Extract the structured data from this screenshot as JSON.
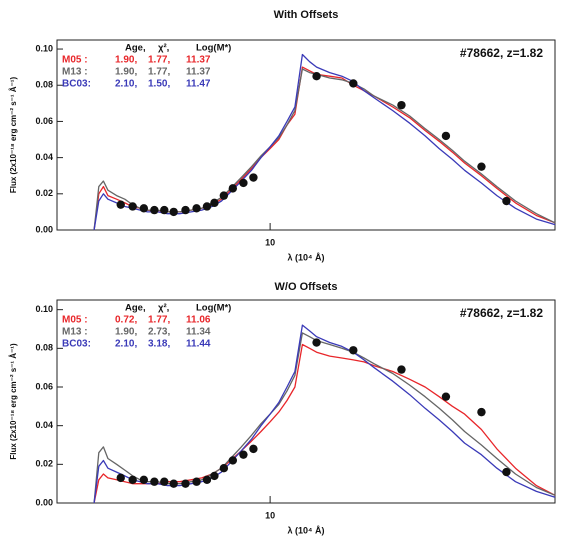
{
  "chart_data": [
    {
      "type": "line",
      "title": "With Offsets",
      "xlabel": "λ (10⁴ Å)",
      "ylabel": "Flux (2x10⁻¹⁸ erg cm⁻² s⁻¹ Å⁻¹)",
      "annotation": "#78662, z=1.82",
      "legend_header": [
        "Age,",
        "χ²,",
        "Log(M*)"
      ],
      "xscale": "log",
      "xlim": [
        3,
        50
      ],
      "xticks": [
        10
      ],
      "ylim": [
        0,
        0.105
      ],
      "yticks": [
        {
          "value": 0,
          "label": "0.00"
        },
        {
          "value": 0.02,
          "label": "0.02"
        },
        {
          "value": 0.04,
          "label": "0.04"
        },
        {
          "value": 0.06,
          "label": "0.06"
        },
        {
          "value": 0.08,
          "label": "0.08"
        },
        {
          "value": 0.1,
          "label": "0.10"
        }
      ],
      "x": [
        3.7,
        3.8,
        3.9,
        4.0,
        4.2,
        4.4,
        4.6,
        4.8,
        5.0,
        5.3,
        5.6,
        6.0,
        6.4,
        6.8,
        7.2,
        7.6,
        8.0,
        8.5,
        9.0,
        9.5,
        10,
        10.5,
        11,
        11.5,
        12,
        12.5,
        13,
        14,
        15,
        16,
        17,
        18,
        20,
        22,
        24,
        26,
        28,
        30,
        33,
        36,
        40,
        45,
        50
      ],
      "series": [
        {
          "name": "M05 :",
          "color": "#e8262a",
          "fit": [
            {
              "value": 1.9,
              "label": "1.90,"
            },
            {
              "value": 1.77,
              "label": "1.77,"
            },
            {
              "value": 11.37,
              "label": "11.37"
            }
          ],
          "values": [
            0.0,
            0.02,
            0.024,
            0.019,
            0.017,
            0.015,
            0.013,
            0.012,
            0.011,
            0.01,
            0.01,
            0.01,
            0.011,
            0.012,
            0.014,
            0.017,
            0.022,
            0.028,
            0.034,
            0.04,
            0.045,
            0.05,
            0.058,
            0.064,
            0.09,
            0.088,
            0.086,
            0.085,
            0.084,
            0.08,
            0.077,
            0.074,
            0.068,
            0.062,
            0.055,
            0.049,
            0.043,
            0.037,
            0.03,
            0.023,
            0.015,
            0.008,
            0.004
          ]
        },
        {
          "name": "M13 :",
          "color": "#666666",
          "fit": [
            {
              "value": 1.9,
              "label": "1.90,"
            },
            {
              "value": 1.77,
              "label": "1.77,"
            },
            {
              "value": 11.37,
              "label": "11.37"
            }
          ],
          "values": [
            0.0,
            0.024,
            0.027,
            0.022,
            0.019,
            0.017,
            0.014,
            0.012,
            0.011,
            0.011,
            0.01,
            0.01,
            0.011,
            0.012,
            0.015,
            0.018,
            0.023,
            0.029,
            0.035,
            0.041,
            0.046,
            0.051,
            0.058,
            0.066,
            0.089,
            0.087,
            0.086,
            0.084,
            0.083,
            0.081,
            0.078,
            0.074,
            0.069,
            0.063,
            0.056,
            0.05,
            0.044,
            0.038,
            0.031,
            0.024,
            0.016,
            0.009,
            0.004
          ]
        },
        {
          "name": "BC03:",
          "color": "#3a3ab8",
          "fit": [
            {
              "value": 2.1,
              "label": "2.10,"
            },
            {
              "value": 1.5,
              "label": "1.50,"
            },
            {
              "value": 11.47,
              "label": "11.47"
            }
          ],
          "values": [
            0.0,
            0.016,
            0.02,
            0.017,
            0.015,
            0.013,
            0.012,
            0.011,
            0.01,
            0.01,
            0.009,
            0.009,
            0.01,
            0.011,
            0.013,
            0.016,
            0.021,
            0.027,
            0.033,
            0.04,
            0.046,
            0.052,
            0.06,
            0.068,
            0.097,
            0.093,
            0.09,
            0.087,
            0.085,
            0.082,
            0.077,
            0.073,
            0.066,
            0.059,
            0.052,
            0.045,
            0.039,
            0.033,
            0.026,
            0.019,
            0.012,
            0.006,
            0.003
          ]
        }
      ],
      "points": {
        "color": "#111111",
        "x": [
          4.3,
          4.6,
          4.9,
          5.2,
          5.5,
          5.8,
          6.2,
          6.6,
          7.0,
          7.3,
          7.7,
          8.1,
          8.6,
          9.1,
          13,
          16,
          21,
          27,
          33,
          38
        ],
        "values": [
          0.014,
          0.013,
          0.012,
          0.011,
          0.011,
          0.01,
          0.011,
          0.012,
          0.013,
          0.015,
          0.019,
          0.023,
          0.026,
          0.029,
          0.085,
          0.081,
          0.069,
          0.052,
          0.035,
          0.016
        ]
      }
    },
    {
      "type": "line",
      "title": "W/O Offsets",
      "xlabel": "λ (10⁴ Å)",
      "ylabel": "Flux (2x10⁻¹⁸ erg cm⁻² s⁻¹ Å⁻¹)",
      "annotation": "#78662, z=1.82",
      "legend_header": [
        "Age,",
        "χ²,",
        "Log(M*)"
      ],
      "xscale": "log",
      "xlim": [
        3,
        50
      ],
      "xticks": [
        10
      ],
      "ylim": [
        0,
        0.105
      ],
      "yticks": [
        {
          "value": 0,
          "label": "0.00"
        },
        {
          "value": 0.02,
          "label": "0.02"
        },
        {
          "value": 0.04,
          "label": "0.04"
        },
        {
          "value": 0.06,
          "label": "0.06"
        },
        {
          "value": 0.08,
          "label": "0.08"
        },
        {
          "value": 0.1,
          "label": "0.10"
        }
      ],
      "x": [
        3.7,
        3.8,
        3.9,
        4.0,
        4.2,
        4.4,
        4.6,
        4.8,
        5.0,
        5.3,
        5.6,
        6.0,
        6.4,
        6.8,
        7.2,
        7.6,
        8.0,
        8.5,
        9.0,
        9.5,
        10,
        10.5,
        11,
        11.5,
        12,
        12.5,
        13,
        14,
        15,
        16,
        17,
        18,
        20,
        22,
        24,
        26,
        28,
        30,
        33,
        36,
        40,
        45,
        50
      ],
      "series": [
        {
          "name": "M05 :",
          "color": "#e8262a",
          "fit": [
            {
              "value": 0.72,
              "label": "0.72,"
            },
            {
              "value": 1.77,
              "label": "1.77,"
            },
            {
              "value": 11.06,
              "label": "11.06"
            }
          ],
          "values": [
            0.0,
            0.012,
            0.015,
            0.013,
            0.012,
            0.011,
            0.01,
            0.01,
            0.01,
            0.01,
            0.011,
            0.011,
            0.012,
            0.013,
            0.015,
            0.018,
            0.022,
            0.027,
            0.032,
            0.037,
            0.042,
            0.047,
            0.053,
            0.06,
            0.082,
            0.08,
            0.078,
            0.076,
            0.075,
            0.074,
            0.073,
            0.071,
            0.068,
            0.064,
            0.06,
            0.055,
            0.05,
            0.046,
            0.038,
            0.028,
            0.018,
            0.009,
            0.004
          ]
        },
        {
          "name": "M13 :",
          "color": "#666666",
          "fit": [
            {
              "value": 1.9,
              "label": "1.90,"
            },
            {
              "value": 2.73,
              "label": "2.73,"
            },
            {
              "value": 11.34,
              "label": "11.34"
            }
          ],
          "values": [
            0.0,
            0.026,
            0.029,
            0.023,
            0.02,
            0.017,
            0.014,
            0.012,
            0.011,
            0.011,
            0.01,
            0.01,
            0.011,
            0.012,
            0.015,
            0.018,
            0.023,
            0.029,
            0.035,
            0.041,
            0.046,
            0.051,
            0.058,
            0.066,
            0.088,
            0.086,
            0.084,
            0.082,
            0.08,
            0.078,
            0.075,
            0.072,
            0.067,
            0.061,
            0.055,
            0.049,
            0.043,
            0.037,
            0.03,
            0.023,
            0.015,
            0.008,
            0.004
          ]
        },
        {
          "name": "BC03:",
          "color": "#3a3ab8",
          "fit": [
            {
              "value": 2.1,
              "label": "2.10,"
            },
            {
              "value": 3.18,
              "label": "3.18,"
            },
            {
              "value": 11.44,
              "label": "11.44"
            }
          ],
          "values": [
            0.0,
            0.019,
            0.022,
            0.018,
            0.016,
            0.014,
            0.012,
            0.011,
            0.01,
            0.01,
            0.009,
            0.009,
            0.01,
            0.011,
            0.013,
            0.016,
            0.021,
            0.027,
            0.033,
            0.04,
            0.046,
            0.052,
            0.06,
            0.068,
            0.092,
            0.089,
            0.086,
            0.083,
            0.081,
            0.078,
            0.074,
            0.07,
            0.063,
            0.056,
            0.049,
            0.043,
            0.037,
            0.031,
            0.025,
            0.018,
            0.011,
            0.006,
            0.003
          ]
        }
      ],
      "points": {
        "color": "#111111",
        "x": [
          4.3,
          4.6,
          4.9,
          5.2,
          5.5,
          5.8,
          6.2,
          6.6,
          7.0,
          7.3,
          7.7,
          8.1,
          8.6,
          9.1,
          13,
          16,
          21,
          27,
          33,
          38
        ],
        "values": [
          0.013,
          0.012,
          0.012,
          0.011,
          0.011,
          0.01,
          0.01,
          0.011,
          0.012,
          0.014,
          0.018,
          0.022,
          0.025,
          0.028,
          0.083,
          0.079,
          0.069,
          0.055,
          0.047,
          0.016
        ]
      }
    }
  ]
}
